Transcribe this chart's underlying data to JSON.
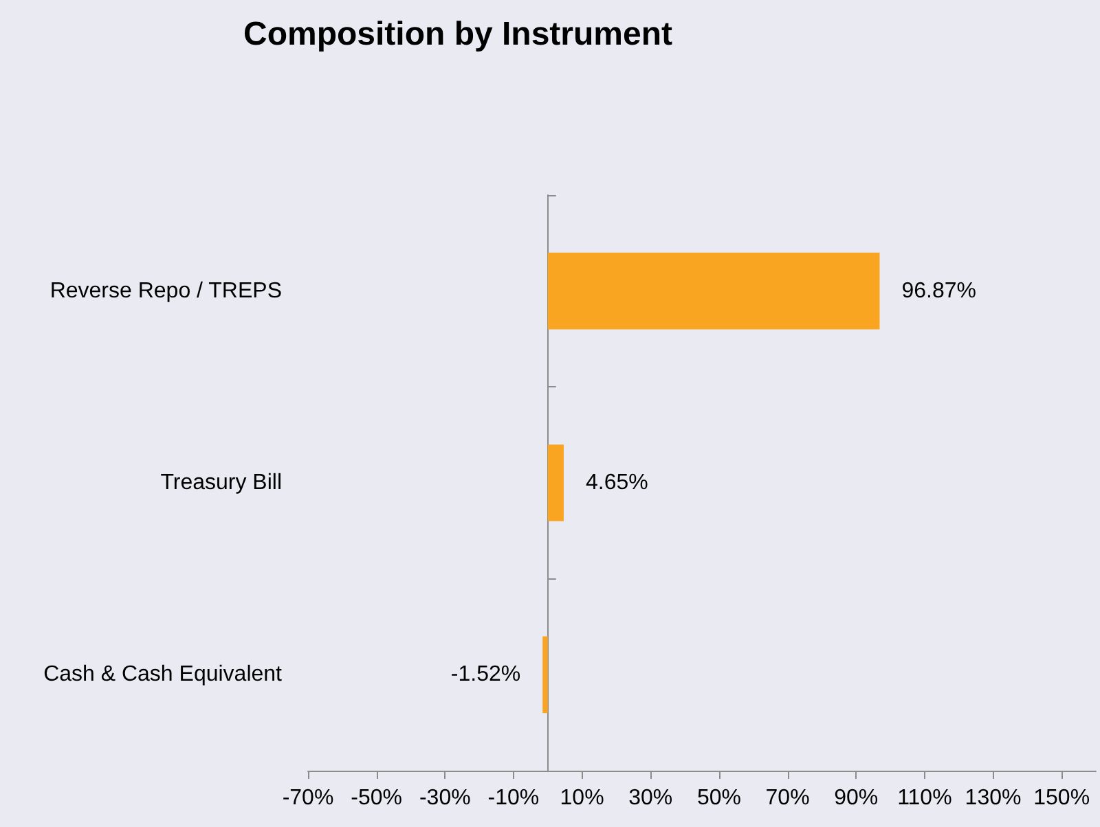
{
  "chart_data": {
    "type": "bar",
    "orientation": "horizontal",
    "title": "Composition by Instrument",
    "categories": [
      "Reverse Repo / TREPS",
      "Treasury Bill",
      "Cash & Cash Equivalent"
    ],
    "values": [
      96.87,
      4.65,
      -1.52
    ],
    "value_labels": [
      "96.87%",
      "4.65%",
      "-1.52%"
    ],
    "color": "#faa521",
    "xlim": [
      -70,
      160
    ],
    "xticks": [
      {
        "value": -70,
        "label": "-70%"
      },
      {
        "value": -50,
        "label": "-50%"
      },
      {
        "value": -30,
        "label": "-30%"
      },
      {
        "value": -10,
        "label": "-10%"
      },
      {
        "value": 10,
        "label": "10%"
      },
      {
        "value": 30,
        "label": "30%"
      },
      {
        "value": 50,
        "label": "50%"
      },
      {
        "value": 70,
        "label": "70%"
      },
      {
        "value": 90,
        "label": "90%"
      },
      {
        "value": 110,
        "label": "110%"
      },
      {
        "value": 130,
        "label": "130%"
      },
      {
        "value": 150,
        "label": "150%"
      }
    ],
    "grid": false
  }
}
